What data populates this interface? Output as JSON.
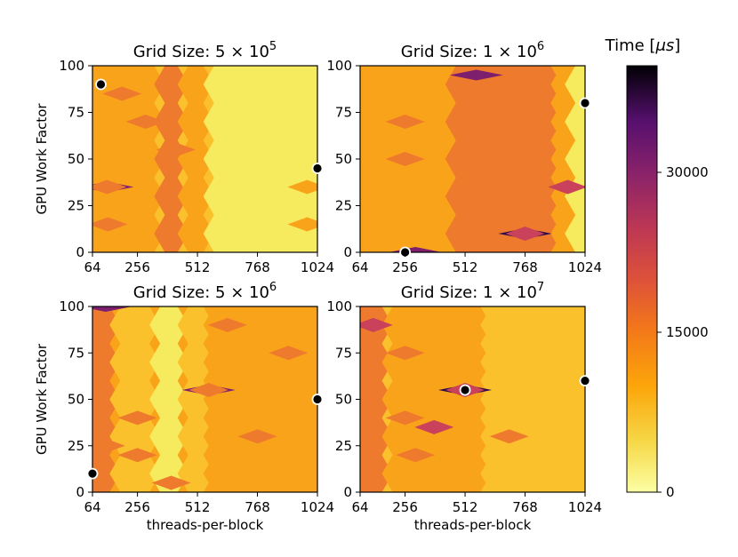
{
  "chart_data": {
    "type": "heatmap",
    "colormap": "inferno",
    "colorbar": {
      "title_prefix": "Time [",
      "title_symbol": "μs",
      "title_suffix": "]",
      "ticks": [
        0,
        15000,
        30000
      ],
      "tick_labels": [
        "0",
        "15000",
        "30000"
      ],
      "range": [
        0,
        40000
      ]
    },
    "xlabel": "threads-per-block",
    "ylabel": "GPU Work Factor",
    "x_ticks": [
      64,
      256,
      512,
      768,
      1024
    ],
    "x_tick_labels": [
      "64",
      "256",
      "512",
      "768",
      "1024"
    ],
    "y_ticks": [
      0,
      25,
      50,
      75,
      100
    ],
    "y_tick_labels": [
      "0",
      "25",
      "50",
      "75",
      "100"
    ],
    "xlim": [
      64,
      1024
    ],
    "ylim": [
      0,
      100
    ],
    "panels": [
      {
        "title_prefix": "Grid Size: 5 × 10",
        "title_exp": "5",
        "base_level": 1,
        "bands": [
          {
            "x0": 64,
            "x1": 350,
            "level": 2
          },
          {
            "x0": 350,
            "x1": 450,
            "level": 3
          },
          {
            "x0": 450,
            "x1": 560,
            "level": 2
          },
          {
            "x0": 560,
            "x1": 1024,
            "level": 0
          }
        ],
        "blobs": [
          {
            "x": 126,
            "y": 35,
            "level": 5
          },
          {
            "x": 126,
            "y": 35,
            "level": 3
          },
          {
            "x": 290,
            "y": 70,
            "level": 3
          },
          {
            "x": 420,
            "y": 55,
            "level": 3
          },
          {
            "x": 190,
            "y": 85,
            "level": 3
          },
          {
            "x": 130,
            "y": 15,
            "level": 3
          },
          {
            "x": 980,
            "y": 35,
            "level": 2
          },
          {
            "x": 980,
            "y": 15,
            "level": 2
          }
        ],
        "min_marker": {
          "x": 100,
          "y": 90
        },
        "max_marker": {
          "x": 1024,
          "y": 45
        }
      },
      {
        "title_prefix": "Grid Size: 1 × 10",
        "title_exp": "6",
        "base_level": 2,
        "bands": [
          {
            "x0": 64,
            "x1": 450,
            "level": 2
          },
          {
            "x0": 450,
            "x1": 900,
            "level": 3
          },
          {
            "x0": 900,
            "x1": 960,
            "level": 2
          },
          {
            "x0": 960,
            "x1": 1024,
            "level": 0
          }
        ],
        "blobs": [
          {
            "x": 768,
            "y": 10,
            "level": 6
          },
          {
            "x": 768,
            "y": 10,
            "level": 4
          },
          {
            "x": 560,
            "y": 95,
            "level": 5
          },
          {
            "x": 300,
            "y": 0,
            "level": 5
          },
          {
            "x": 950,
            "y": 35,
            "level": 4
          },
          {
            "x": 256,
            "y": 70,
            "level": 3
          },
          {
            "x": 256,
            "y": 50,
            "level": 3
          },
          {
            "x": 800,
            "y": 50,
            "level": 3
          },
          {
            "x": 650,
            "y": 65,
            "level": 3
          }
        ],
        "min_marker": {
          "x": 256,
          "y": 0
        },
        "max_marker": {
          "x": 1024,
          "y": 80
        }
      },
      {
        "title_prefix": "Grid Size: 5 × 10",
        "title_exp": "6",
        "base_level": 2,
        "bands": [
          {
            "x0": 64,
            "x1": 160,
            "level": 3
          },
          {
            "x0": 160,
            "x1": 330,
            "level": 1
          },
          {
            "x0": 330,
            "x1": 450,
            "level": 0
          },
          {
            "x0": 450,
            "x1": 560,
            "level": 1
          },
          {
            "x0": 560,
            "x1": 1024,
            "level": 2
          }
        ],
        "blobs": [
          {
            "x": 560,
            "y": 55,
            "level": 5
          },
          {
            "x": 560,
            "y": 55,
            "level": 3
          },
          {
            "x": 900,
            "y": 75,
            "level": 3
          },
          {
            "x": 768,
            "y": 30,
            "level": 3
          },
          {
            "x": 400,
            "y": 5,
            "level": 3
          },
          {
            "x": 256,
            "y": 40,
            "level": 3
          },
          {
            "x": 256,
            "y": 20,
            "level": 3
          },
          {
            "x": 120,
            "y": 100,
            "level": 5
          },
          {
            "x": 120,
            "y": 25,
            "level": 3
          },
          {
            "x": 640,
            "y": 90,
            "level": 3
          }
        ],
        "min_marker": {
          "x": 64,
          "y": 10
        },
        "max_marker": {
          "x": 1024,
          "y": 50
        }
      },
      {
        "title_prefix": "Grid Size: 1 × 10",
        "title_exp": "7",
        "base_level": 1,
        "bands": [
          {
            "x0": 64,
            "x1": 180,
            "level": 3
          },
          {
            "x0": 180,
            "x1": 600,
            "level": 2
          },
          {
            "x0": 600,
            "x1": 1024,
            "level": 1
          }
        ],
        "blobs": [
          {
            "x": 512,
            "y": 55,
            "level": 6
          },
          {
            "x": 512,
            "y": 55,
            "level": 4
          },
          {
            "x": 380,
            "y": 35,
            "level": 4
          },
          {
            "x": 256,
            "y": 75,
            "level": 3
          },
          {
            "x": 256,
            "y": 40,
            "level": 3
          },
          {
            "x": 300,
            "y": 20,
            "level": 3
          },
          {
            "x": 700,
            "y": 30,
            "level": 3
          },
          {
            "x": 120,
            "y": 90,
            "level": 4
          }
        ],
        "min_marker": {
          "x": 512,
          "y": 55
        },
        "max_marker": {
          "x": 1024,
          "y": 60
        }
      }
    ]
  }
}
